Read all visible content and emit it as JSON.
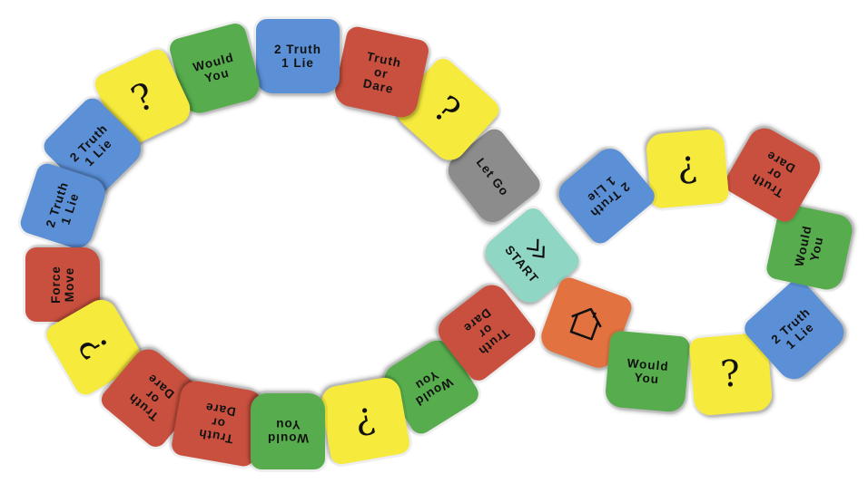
{
  "colors": {
    "yellow": "#f6ea3c",
    "green": "#57ad4d",
    "blue": "#5b8fd6",
    "red": "#c9503f",
    "gray": "#8c8c8c",
    "mint": "#90d6c4",
    "orange": "#e27341"
  },
  "board": {
    "tiles": [
      {
        "id": "start",
        "label": "START",
        "color": "mint",
        "icon": "double-chevron-icon"
      },
      {
        "id": "let-go",
        "label": "Let Go",
        "color": "gray"
      },
      {
        "id": "question-1",
        "label": "?",
        "color": "yellow",
        "icon": "question-mark-icon"
      },
      {
        "id": "truth-dare-1",
        "label": "Truth\nor\nDare",
        "color": "red"
      },
      {
        "id": "two-truth-1",
        "label": "2 Truth\n1 Lie",
        "color": "blue"
      },
      {
        "id": "would-you-1",
        "label": "Would\nYou",
        "color": "green"
      },
      {
        "id": "question-2",
        "label": "?",
        "color": "yellow",
        "icon": "question-mark-icon"
      },
      {
        "id": "two-truth-2",
        "label": "2 Truth\n1 Lie",
        "color": "blue"
      },
      {
        "id": "two-truth-3",
        "label": "2 Truth\n1 Lie",
        "color": "blue"
      },
      {
        "id": "force-move",
        "label": "Force\nMove",
        "color": "red"
      },
      {
        "id": "question-3",
        "label": "?",
        "color": "yellow",
        "icon": "question-mark-icon"
      },
      {
        "id": "truth-dare-2",
        "label": "Truth\nor\nDare",
        "color": "red"
      },
      {
        "id": "truth-dare-3",
        "label": "Truth\nor\nDare",
        "color": "red"
      },
      {
        "id": "would-you-2",
        "label": "Would\nYou",
        "color": "green"
      },
      {
        "id": "question-4",
        "label": "?",
        "color": "yellow",
        "icon": "question-mark-icon"
      },
      {
        "id": "would-you-3",
        "label": "Would\nYou",
        "color": "green"
      },
      {
        "id": "truth-dare-4",
        "label": "Truth\nor\nDare",
        "color": "red"
      },
      {
        "id": "home",
        "label": "",
        "color": "orange",
        "icon": "house-icon"
      },
      {
        "id": "would-you-4",
        "label": "Would\nYou",
        "color": "green"
      },
      {
        "id": "question-5",
        "label": "?",
        "color": "yellow",
        "icon": "question-mark-icon"
      },
      {
        "id": "two-truth-4",
        "label": "2 Truth\n1 Lie",
        "color": "blue"
      },
      {
        "id": "would-you-5",
        "label": "Would\nYou",
        "color": "green"
      },
      {
        "id": "truth-dare-5",
        "label": "Truth\nor\nDare",
        "color": "red"
      },
      {
        "id": "question-6",
        "label": "?",
        "color": "yellow",
        "icon": "question-mark-icon"
      },
      {
        "id": "two-truth-5",
        "label": "2 Truth\n1 Lie",
        "color": "blue"
      }
    ]
  }
}
